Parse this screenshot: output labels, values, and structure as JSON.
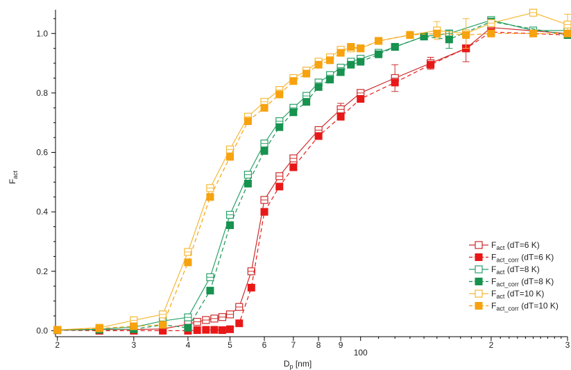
{
  "chart_data": {
    "type": "scatter",
    "xlabel": {
      "main": "D",
      "sub": "p",
      "unit": " [nm]"
    },
    "ylabel": {
      "main": "F",
      "sub": "act"
    },
    "x_scale": "log",
    "xlim": [
      19.8,
      300
    ],
    "ylim": [
      -0.02,
      1.08
    ],
    "x_ticks": [
      {
        "value": 20,
        "label": "2"
      },
      {
        "value": 30,
        "label": "3"
      },
      {
        "value": 40,
        "label": "4"
      },
      {
        "value": 50,
        "label": "5"
      },
      {
        "value": 60,
        "label": "6"
      },
      {
        "value": 70,
        "label": "7"
      },
      {
        "value": 80,
        "label": "8"
      },
      {
        "value": 90,
        "label": "9"
      },
      {
        "value": 100,
        "label": "100"
      },
      {
        "value": 200,
        "label": "2"
      },
      {
        "value": 300,
        "label": "3"
      }
    ],
    "y_ticks": [
      {
        "value": 0.0,
        "label": "0.0"
      },
      {
        "value": 0.2,
        "label": "0.2"
      },
      {
        "value": 0.4,
        "label": "0.4"
      },
      {
        "value": 0.6,
        "label": "0.6"
      },
      {
        "value": 0.8,
        "label": "0.8"
      },
      {
        "value": 1.0,
        "label": "1.0"
      }
    ],
    "legend_position": "right",
    "series": [
      {
        "key": "fact-6k",
        "legend": {
          "main": "F",
          "sub": "act",
          "rest": " (dT=6 K)"
        },
        "color": "#cc2a2a",
        "marker": "open",
        "dash": false,
        "points": [
          [
            20,
            0.002
          ],
          [
            25,
            0.004
          ],
          [
            30,
            0.004
          ],
          [
            35,
            0.006
          ],
          [
            40,
            0.022
          ],
          [
            42,
            0.03
          ],
          [
            44,
            0.036
          ],
          [
            46,
            0.041
          ],
          [
            48,
            0.046
          ],
          [
            50,
            0.055
          ],
          [
            52.5,
            0.08
          ],
          [
            56,
            0.2
          ],
          [
            60,
            0.44
          ],
          [
            65,
            0.52
          ],
          [
            70,
            0.58
          ],
          [
            80,
            0.675
          ],
          [
            90,
            0.745
          ],
          [
            100,
            0.8
          ],
          [
            120,
            0.85
          ],
          [
            145,
            0.9
          ],
          [
            175,
            0.95
          ],
          [
            200,
            1.02
          ],
          [
            300,
            1.0
          ]
        ],
        "errors": [
          [
            90,
            0.02
          ],
          [
            120,
            0.045
          ],
          [
            145,
            0.02
          ],
          [
            175,
            0.045
          ],
          [
            200,
            0.02
          ]
        ]
      },
      {
        "key": "fact-corr-6k",
        "legend": {
          "main": "F",
          "sub": "act_corr",
          "rest": " (dT=6 K)"
        },
        "color": "#e81818",
        "marker": "filled",
        "dash": true,
        "points": [
          [
            20,
            0.002
          ],
          [
            25,
            0.0
          ],
          [
            30,
            0.0
          ],
          [
            35,
            0.0
          ],
          [
            40,
            0.0
          ],
          [
            42,
            0.002
          ],
          [
            44,
            0.003
          ],
          [
            46,
            0.003
          ],
          [
            48,
            0.002
          ],
          [
            50,
            0.005
          ],
          [
            52.5,
            0.025
          ],
          [
            56,
            0.145
          ],
          [
            60,
            0.4
          ],
          [
            65,
            0.485
          ],
          [
            70,
            0.55
          ],
          [
            80,
            0.655
          ],
          [
            90,
            0.72
          ],
          [
            100,
            0.78
          ],
          [
            120,
            0.835
          ],
          [
            145,
            0.895
          ],
          [
            175,
            0.95
          ],
          [
            200,
            1.005
          ],
          [
            300,
            0.995
          ]
        ],
        "errors": []
      },
      {
        "key": "fact-8k",
        "legend": {
          "main": "F",
          "sub": "act",
          "rest": " (dT=8 K)"
        },
        "color": "#2aa06b",
        "marker": "open",
        "dash": false,
        "points": [
          [
            20,
            0.003
          ],
          [
            25,
            0.005
          ],
          [
            30,
            0.012
          ],
          [
            35,
            0.033
          ],
          [
            40,
            0.045
          ],
          [
            45,
            0.18
          ],
          [
            50,
            0.39
          ],
          [
            55,
            0.525
          ],
          [
            60,
            0.63
          ],
          [
            65,
            0.705
          ],
          [
            70,
            0.75
          ],
          [
            75,
            0.79
          ],
          [
            80,
            0.835
          ],
          [
            85,
            0.86
          ],
          [
            90,
            0.885
          ],
          [
            95,
            0.905
          ],
          [
            100,
            0.915
          ],
          [
            110,
            0.935
          ],
          [
            120,
            0.955
          ],
          [
            140,
            0.99
          ],
          [
            160,
            1.0
          ],
          [
            200,
            1.045
          ],
          [
            250,
            1.01
          ],
          [
            300,
            1.01
          ]
        ],
        "errors": []
      },
      {
        "key": "fact-corr-8k",
        "legend": {
          "main": "F",
          "sub": "act_corr",
          "rest": " (dT=8 K)"
        },
        "color": "#17924f",
        "marker": "filled",
        "dash": true,
        "points": [
          [
            20,
            0.002
          ],
          [
            25,
            0.003
          ],
          [
            30,
            0.005
          ],
          [
            35,
            0.02
          ],
          [
            40,
            0.01
          ],
          [
            45,
            0.135
          ],
          [
            50,
            0.355
          ],
          [
            55,
            0.495
          ],
          [
            60,
            0.605
          ],
          [
            65,
            0.685
          ],
          [
            70,
            0.735
          ],
          [
            75,
            0.77
          ],
          [
            80,
            0.82
          ],
          [
            85,
            0.845
          ],
          [
            90,
            0.87
          ],
          [
            95,
            0.895
          ],
          [
            100,
            0.905
          ],
          [
            110,
            0.93
          ],
          [
            120,
            0.955
          ],
          [
            140,
            0.99
          ],
          [
            160,
            0.98
          ],
          [
            200,
            1.04
          ],
          [
            300,
            0.995
          ]
        ],
        "errors": [
          [
            160,
            0.03
          ]
        ]
      },
      {
        "key": "fact-10k",
        "legend": {
          "main": "F",
          "sub": "act",
          "rest": " (dT=10 K)"
        },
        "color": "#f5b836",
        "marker": "open",
        "dash": false,
        "points": [
          [
            20,
            0.003
          ],
          [
            25,
            0.01
          ],
          [
            30,
            0.035
          ],
          [
            35,
            0.055
          ],
          [
            40,
            0.265
          ],
          [
            45,
            0.48
          ],
          [
            50,
            0.61
          ],
          [
            55,
            0.72
          ],
          [
            60,
            0.77
          ],
          [
            65,
            0.81
          ],
          [
            70,
            0.85
          ],
          [
            75,
            0.875
          ],
          [
            80,
            0.905
          ],
          [
            85,
            0.92
          ],
          [
            90,
            0.945
          ],
          [
            95,
            0.95
          ],
          [
            100,
            0.95
          ],
          [
            110,
            0.975
          ],
          [
            130,
            0.995
          ],
          [
            150,
            1.01
          ],
          [
            175,
            1.0
          ],
          [
            200,
            1.035
          ],
          [
            250,
            1.07
          ],
          [
            300,
            1.03
          ]
        ],
        "errors": [
          [
            150,
            0.03
          ],
          [
            175,
            0.05
          ],
          [
            300,
            0.035
          ]
        ]
      },
      {
        "key": "fact-corr-10k",
        "legend": {
          "main": "F",
          "sub": "act_corr",
          "rest": " (dT=10 K)"
        },
        "color": "#f7a20f",
        "marker": "filled",
        "dash": true,
        "points": [
          [
            20,
            0.003
          ],
          [
            25,
            0.008
          ],
          [
            30,
            0.015
          ],
          [
            35,
            0.02
          ],
          [
            40,
            0.23
          ],
          [
            45,
            0.45
          ],
          [
            50,
            0.585
          ],
          [
            55,
            0.705
          ],
          [
            60,
            0.75
          ],
          [
            65,
            0.795
          ],
          [
            70,
            0.84
          ],
          [
            75,
            0.865
          ],
          [
            80,
            0.895
          ],
          [
            85,
            0.91
          ],
          [
            90,
            0.935
          ],
          [
            95,
            0.955
          ],
          [
            100,
            0.95
          ],
          [
            110,
            0.975
          ],
          [
            130,
            0.995
          ],
          [
            150,
            1.0
          ],
          [
            175,
            0.995
          ],
          [
            200,
            1.0
          ],
          [
            250,
            1.0
          ],
          [
            300,
            1.0
          ]
        ],
        "errors": []
      }
    ]
  }
}
